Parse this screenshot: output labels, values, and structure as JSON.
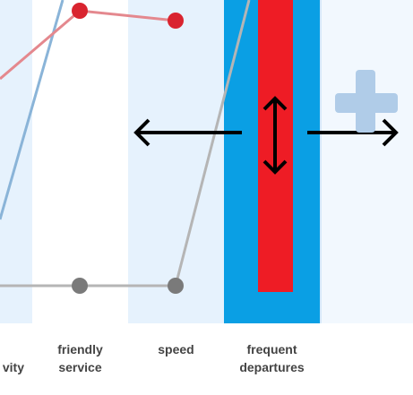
{
  "categories": [
    {
      "label": "vity"
    },
    {
      "label": "friendly\nservice"
    },
    {
      "label": "speed"
    },
    {
      "label": "frequent\ndepartures"
    }
  ],
  "colors": {
    "column_light": "#e6f2fd",
    "column_white": "#ffffff",
    "column_highlight": "#0a9fe4",
    "bar_red": "#ee1c25",
    "line_red": "#e4888e",
    "line_gray": "#b5b5b5",
    "line_blue": "#8ab4d8",
    "point_red": "#d9242f",
    "point_gray": "#7a7a7a",
    "plus": "#b0cce8"
  },
  "icons": {
    "move_left": "arrow-left-icon",
    "resize_vertical": "arrow-up-down-icon",
    "move_right": "arrow-right-icon",
    "add_column": "plus-icon"
  }
}
